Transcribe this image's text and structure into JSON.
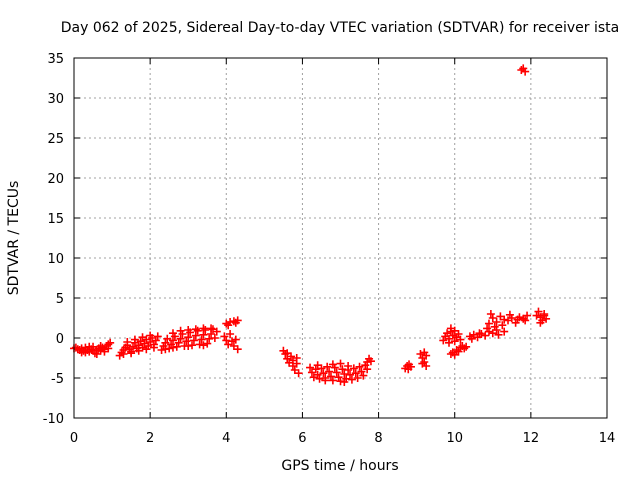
{
  "chart_data": {
    "type": "scatter",
    "title": "Day 062 of 2025, Sidereal Day-to-day VTEC variation (SDTVAR) for receiver ista",
    "xlabel": "GPS time / hours",
    "ylabel": "SDTVAR / TECUs",
    "xlim": [
      0,
      14
    ],
    "ylim": [
      -10,
      35
    ],
    "xticks": [
      0,
      2,
      4,
      6,
      8,
      10,
      12,
      14
    ],
    "yticks": [
      -10,
      -5,
      0,
      5,
      10,
      15,
      20,
      25,
      30,
      35
    ],
    "grid": true,
    "marker": "plus",
    "series": [
      {
        "name": "SDTVAR",
        "color": "#ff0000",
        "points": [
          [
            0.0,
            -1.3
          ],
          [
            0.05,
            -1.2
          ],
          [
            0.1,
            -1.4
          ],
          [
            0.15,
            -1.5
          ],
          [
            0.2,
            -1.3
          ],
          [
            0.25,
            -1.6
          ],
          [
            0.3,
            -1.8
          ],
          [
            0.35,
            -1.5
          ],
          [
            0.4,
            -1.7
          ],
          [
            0.45,
            -1.4
          ],
          [
            0.5,
            -1.6
          ],
          [
            0.55,
            -1.9
          ],
          [
            0.6,
            -1.5
          ],
          [
            0.65,
            -1.3
          ],
          [
            0.7,
            -1.6
          ],
          [
            0.75,
            -1.2
          ],
          [
            0.8,
            -1.4
          ],
          [
            0.85,
            -1.0
          ],
          [
            0.9,
            -0.8
          ],
          [
            0.95,
            -0.6
          ],
          [
            0.3,
            -1.2
          ],
          [
            0.5,
            -1.1
          ],
          [
            0.7,
            -1.0
          ],
          [
            0.2,
            -1.8
          ],
          [
            0.6,
            -2.0
          ],
          [
            0.8,
            -1.7
          ],
          [
            0.9,
            -1.3
          ],
          [
            0.4,
            -1.1
          ],
          [
            1.2,
            -2.2
          ],
          [
            1.25,
            -1.8
          ],
          [
            1.3,
            -1.5
          ],
          [
            1.35,
            -1.2
          ],
          [
            1.4,
            -0.9
          ],
          [
            1.45,
            -1.4
          ],
          [
            1.5,
            -1.7
          ],
          [
            1.55,
            -1.1
          ],
          [
            1.6,
            -0.6
          ],
          [
            1.65,
            -1.3
          ],
          [
            1.7,
            -0.9
          ],
          [
            1.75,
            -0.4
          ],
          [
            1.8,
            -1.2
          ],
          [
            1.85,
            -0.7
          ],
          [
            1.9,
            -0.2
          ],
          [
            1.95,
            -1.0
          ],
          [
            2.0,
            -0.5
          ],
          [
            2.05,
            0.0
          ],
          [
            2.1,
            -0.8
          ],
          [
            2.15,
            -0.3
          ],
          [
            2.2,
            0.2
          ],
          [
            1.3,
            -2.0
          ],
          [
            1.5,
            -1.9
          ],
          [
            1.7,
            -1.6
          ],
          [
            1.9,
            -1.4
          ],
          [
            2.1,
            -1.2
          ],
          [
            1.4,
            -0.5
          ],
          [
            1.6,
            -0.2
          ],
          [
            1.8,
            0.1
          ],
          [
            2.0,
            0.3
          ],
          [
            2.3,
            -1.5
          ],
          [
            2.35,
            -1.0
          ],
          [
            2.4,
            -0.6
          ],
          [
            2.45,
            -0.1
          ],
          [
            2.5,
            -1.3
          ],
          [
            2.55,
            -0.8
          ],
          [
            2.6,
            -0.3
          ],
          [
            2.65,
            0.2
          ],
          [
            2.7,
            -1.1
          ],
          [
            2.75,
            -0.6
          ],
          [
            2.8,
            -0.1
          ],
          [
            2.85,
            0.5
          ],
          [
            2.9,
            -1.0
          ],
          [
            2.95,
            -0.4
          ],
          [
            3.0,
            0.1
          ],
          [
            3.05,
            0.7
          ],
          [
            3.1,
            -0.9
          ],
          [
            3.15,
            -0.3
          ],
          [
            3.2,
            0.3
          ],
          [
            3.25,
            0.9
          ],
          [
            3.3,
            -0.8
          ],
          [
            3.35,
            -0.2
          ],
          [
            3.4,
            0.4
          ],
          [
            3.45,
            1.0
          ],
          [
            3.5,
            -0.7
          ],
          [
            3.55,
            -0.1
          ],
          [
            3.6,
            0.5
          ],
          [
            3.65,
            1.1
          ],
          [
            3.7,
            0.0
          ],
          [
            3.75,
            0.8
          ],
          [
            2.6,
            0.6
          ],
          [
            2.8,
            0.9
          ],
          [
            3.0,
            1.0
          ],
          [
            3.2,
            1.1
          ],
          [
            3.4,
            1.2
          ],
          [
            3.6,
            1.2
          ],
          [
            2.4,
            -1.4
          ],
          [
            2.6,
            -1.2
          ],
          [
            3.0,
            -1.0
          ],
          [
            3.4,
            -0.9
          ],
          [
            3.95,
            0.2
          ],
          [
            4.0,
            -0.3
          ],
          [
            4.05,
            -0.8
          ],
          [
            4.1,
            0.5
          ],
          [
            4.15,
            -0.4
          ],
          [
            4.2,
            -1.0
          ],
          [
            4.25,
            -0.2
          ],
          [
            4.3,
            -1.4
          ],
          [
            4.0,
            1.8
          ],
          [
            4.1,
            2.0
          ],
          [
            4.2,
            2.1
          ],
          [
            4.3,
            2.2
          ],
          [
            4.05,
            1.6
          ],
          [
            4.25,
            1.9
          ],
          [
            5.5,
            -1.6
          ],
          [
            5.55,
            -2.0
          ],
          [
            5.6,
            -2.6
          ],
          [
            5.65,
            -3.1
          ],
          [
            5.7,
            -2.3
          ],
          [
            5.75,
            -3.5
          ],
          [
            5.8,
            -4.0
          ],
          [
            5.85,
            -3.2
          ],
          [
            5.9,
            -4.4
          ],
          [
            5.6,
            -1.9
          ],
          [
            5.75,
            -2.8
          ],
          [
            5.85,
            -2.5
          ],
          [
            6.2,
            -3.7
          ],
          [
            6.25,
            -4.3
          ],
          [
            6.3,
            -4.9
          ],
          [
            6.35,
            -3.9
          ],
          [
            6.4,
            -4.6
          ],
          [
            6.45,
            -5.1
          ],
          [
            6.5,
            -3.8
          ],
          [
            6.55,
            -4.4
          ],
          [
            6.6,
            -5.0
          ],
          [
            6.65,
            -3.6
          ],
          [
            6.7,
            -4.2
          ],
          [
            6.75,
            -4.8
          ],
          [
            6.8,
            -5.3
          ],
          [
            6.85,
            -3.7
          ],
          [
            6.9,
            -4.3
          ],
          [
            6.95,
            -4.9
          ],
          [
            7.0,
            -5.4
          ],
          [
            7.05,
            -3.9
          ],
          [
            7.1,
            -4.5
          ],
          [
            7.15,
            -5.1
          ],
          [
            7.2,
            -4.0
          ],
          [
            7.25,
            -4.6
          ],
          [
            7.3,
            -5.2
          ],
          [
            7.35,
            -3.8
          ],
          [
            7.4,
            -4.4
          ],
          [
            7.45,
            -5.0
          ],
          [
            7.5,
            -3.6
          ],
          [
            7.55,
            -4.2
          ],
          [
            7.6,
            -4.7
          ],
          [
            7.65,
            -3.4
          ],
          [
            7.7,
            -3.9
          ],
          [
            7.75,
            -2.6
          ],
          [
            7.8,
            -2.9
          ],
          [
            7.7,
            -3.0
          ],
          [
            6.4,
            -3.4
          ],
          [
            6.8,
            -3.3
          ],
          [
            7.0,
            -3.2
          ],
          [
            7.2,
            -3.5
          ],
          [
            6.6,
            -5.3
          ],
          [
            7.1,
            -5.5
          ],
          [
            8.7,
            -3.8
          ],
          [
            8.75,
            -3.5
          ],
          [
            8.8,
            -3.3
          ],
          [
            8.85,
            -3.6
          ],
          [
            8.78,
            -3.9
          ],
          [
            9.1,
            -2.0
          ],
          [
            9.15,
            -2.5
          ],
          [
            9.2,
            -3.0
          ],
          [
            9.25,
            -3.5
          ],
          [
            9.2,
            -1.8
          ],
          [
            9.15,
            -3.2
          ],
          [
            9.25,
            -2.2
          ],
          [
            9.7,
            -0.3
          ],
          [
            9.75,
            0.2
          ],
          [
            9.8,
            0.6
          ],
          [
            9.85,
            -0.1
          ],
          [
            9.9,
            0.8
          ],
          [
            9.95,
            0.3
          ],
          [
            10.0,
            0.9
          ],
          [
            10.05,
            0.1
          ],
          [
            10.1,
            0.5
          ],
          [
            10.15,
            -0.2
          ],
          [
            9.85,
            -0.6
          ],
          [
            10.0,
            -0.4
          ],
          [
            9.9,
            1.2
          ],
          [
            9.9,
            -2.0
          ],
          [
            9.95,
            -1.8
          ],
          [
            10.05,
            -1.5
          ],
          [
            10.1,
            -1.7
          ],
          [
            10.15,
            -1.2
          ],
          [
            10.2,
            -1.0
          ],
          [
            10.25,
            -1.3
          ],
          [
            10.3,
            -1.1
          ],
          [
            10.0,
            -2.1
          ],
          [
            10.4,
            0.2
          ],
          [
            10.5,
            0.4
          ],
          [
            10.6,
            0.1
          ],
          [
            10.7,
            0.5
          ],
          [
            10.8,
            0.3
          ],
          [
            10.9,
            0.8
          ],
          [
            11.0,
            0.6
          ],
          [
            11.1,
            1.0
          ],
          [
            10.45,
            -0.1
          ],
          [
            10.65,
            0.6
          ],
          [
            10.85,
            1.2
          ],
          [
            11.05,
            1.4
          ],
          [
            11.25,
            1.6
          ],
          [
            10.9,
            1.8
          ],
          [
            11.1,
            2.0
          ],
          [
            11.3,
            2.3
          ],
          [
            11.5,
            2.5
          ],
          [
            11.7,
            2.6
          ],
          [
            11.9,
            2.8
          ],
          [
            11.0,
            2.5
          ],
          [
            11.2,
            2.7
          ],
          [
            11.4,
            2.2
          ],
          [
            11.6,
            1.9
          ],
          [
            11.8,
            2.4
          ],
          [
            11.3,
            0.8
          ],
          [
            11.15,
            0.4
          ],
          [
            10.95,
            3.0
          ],
          [
            11.45,
            2.9
          ],
          [
            11.65,
            2.3
          ],
          [
            11.85,
            2.2
          ],
          [
            12.15,
            2.8
          ],
          [
            12.2,
            3.3
          ],
          [
            12.25,
            2.6
          ],
          [
            12.3,
            2.2
          ],
          [
            12.35,
            3.0
          ],
          [
            12.4,
            2.4
          ],
          [
            12.25,
            1.9
          ],
          [
            12.35,
            2.8
          ],
          [
            11.75,
            33.5
          ],
          [
            11.8,
            33.7
          ],
          [
            11.85,
            33.3
          ]
        ]
      }
    ]
  }
}
